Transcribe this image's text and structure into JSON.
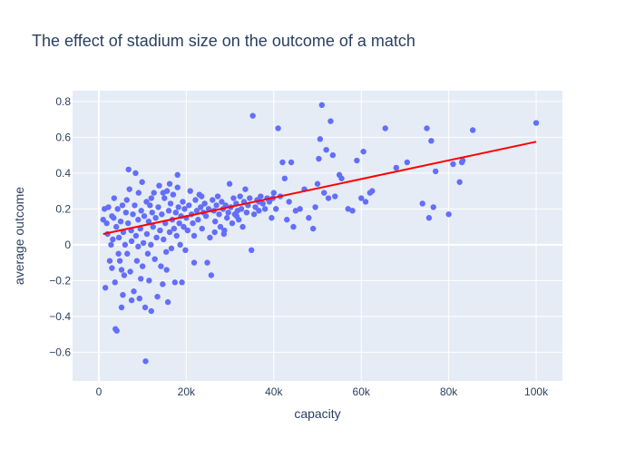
{
  "chart_data": {
    "type": "scatter",
    "title": "The effect of stadium size on the outcome of a match",
    "xlabel": "capacity",
    "ylabel": "average outcome",
    "xlim": [
      -6000,
      106000
    ],
    "ylim": [
      -0.76,
      0.86
    ],
    "grid": true,
    "colors": {
      "plot_bg": "#E5ECF6",
      "grid": "#ffffff",
      "points": "#636EFA",
      "trend": "#FF0000",
      "text": "#2a3f5f"
    },
    "x_ticks": [
      {
        "value": 0,
        "label": "0"
      },
      {
        "value": 20000,
        "label": "20k"
      },
      {
        "value": 40000,
        "label": "40k"
      },
      {
        "value": 60000,
        "label": "60k"
      },
      {
        "value": 80000,
        "label": "80k"
      },
      {
        "value": 100000,
        "label": "100k"
      }
    ],
    "y_ticks": [
      {
        "value": -0.6,
        "label": "−0.6"
      },
      {
        "value": -0.4,
        "label": "−0.4"
      },
      {
        "value": -0.2,
        "label": "−0.2"
      },
      {
        "value": 0,
        "label": "0"
      },
      {
        "value": 0.2,
        "label": "0.2"
      },
      {
        "value": 0.4,
        "label": "0.4"
      },
      {
        "value": 0.6,
        "label": "0.6"
      },
      {
        "value": 0.8,
        "label": "0.8"
      }
    ],
    "trendline": {
      "x": [
        1000,
        100000
      ],
      "y": [
        0.06,
        0.575
      ]
    },
    "series": [
      {
        "points": [
          [
            1000,
            0.14
          ],
          [
            1300,
            0.2
          ],
          [
            1500,
            -0.24
          ],
          [
            1800,
            0.12
          ],
          [
            2000,
            0.06
          ],
          [
            2200,
            0.21
          ],
          [
            2500,
            -0.09
          ],
          [
            2800,
            0.0
          ],
          [
            3000,
            -0.13
          ],
          [
            3200,
            0.03
          ],
          [
            3400,
            0.15
          ],
          [
            3500,
            0.26
          ],
          [
            3700,
            -0.21
          ],
          [
            3800,
            -0.47
          ],
          [
            4000,
            0.1
          ],
          [
            4100,
            -0.48
          ],
          [
            4300,
            0.2
          ],
          [
            4500,
            -0.05
          ],
          [
            4600,
            0.04
          ],
          [
            4800,
            -0.09
          ],
          [
            5000,
            0.13
          ],
          [
            5200,
            -0.35
          ],
          [
            5400,
            0.22
          ],
          [
            5500,
            -0.28
          ],
          [
            5600,
            0.07
          ],
          [
            5800,
            -0.17
          ],
          [
            6000,
            0.0
          ],
          [
            6200,
            0.18
          ],
          [
            6400,
            0.25
          ],
          [
            6500,
            -0.05
          ],
          [
            6700,
            0.12
          ],
          [
            6800,
            0.42
          ],
          [
            7000,
            0.31
          ],
          [
            7200,
            -0.15
          ],
          [
            7400,
            0.08
          ],
          [
            7500,
            0.02
          ],
          [
            7800,
            0.17
          ],
          [
            8000,
            -0.26
          ],
          [
            8200,
            0.22
          ],
          [
            8400,
            0.4
          ],
          [
            8500,
            0.05
          ],
          [
            8700,
            -0.09
          ],
          [
            9000,
            0.14
          ],
          [
            9100,
            0.29
          ],
          [
            9300,
            -0.3
          ],
          [
            9500,
            0.09
          ],
          [
            9700,
            0.19
          ],
          [
            9900,
            0.35
          ],
          [
            10000,
            -0.12
          ],
          [
            10200,
            0.01
          ],
          [
            10400,
            0.16
          ],
          [
            10600,
            -0.35
          ],
          [
            10700,
            -0.65
          ],
          [
            10900,
            0.24
          ],
          [
            11000,
            0.06
          ],
          [
            11200,
            -0.05
          ],
          [
            11400,
            0.13
          ],
          [
            11500,
            -0.2
          ],
          [
            11700,
            0.22
          ],
          [
            11900,
            0.0
          ],
          [
            12000,
            -0.37
          ],
          [
            12200,
            0.18
          ],
          [
            12400,
            0.1
          ],
          [
            12600,
            0.29
          ],
          [
            12800,
            -0.08
          ],
          [
            13000,
            0.15
          ],
          [
            13200,
            0.04
          ],
          [
            13400,
            -0.29
          ],
          [
            13600,
            0.21
          ],
          [
            13800,
            0.33
          ],
          [
            14000,
            0.08
          ],
          [
            14200,
            -0.12
          ],
          [
            14400,
            0.17
          ],
          [
            14600,
            -0.22
          ],
          [
            14800,
            0.03
          ],
          [
            15000,
            0.26
          ],
          [
            15200,
            0.12
          ],
          [
            15400,
            -0.04
          ],
          [
            15600,
            0.3
          ],
          [
            15800,
            -0.32
          ],
          [
            16000,
            0.19
          ],
          [
            16200,
            0.07
          ],
          [
            16400,
            0.23
          ],
          [
            16600,
            -0.02
          ],
          [
            16800,
            0.14
          ],
          [
            17000,
            0.28
          ],
          [
            17200,
            0.09
          ],
          [
            17400,
            -0.21
          ],
          [
            17600,
            0.18
          ],
          [
            17800,
            0.05
          ],
          [
            18000,
            0.39
          ],
          [
            18200,
            0.21
          ],
          [
            18400,
            0.12
          ],
          [
            18600,
            0.0
          ],
          [
            18800,
            0.16
          ],
          [
            19000,
            -0.21
          ],
          [
            19200,
            0.24
          ],
          [
            19400,
            0.1
          ],
          [
            19600,
            0.2
          ],
          [
            19800,
            -0.03
          ],
          [
            20000,
            0.15
          ],
          [
            20300,
            0.08
          ],
          [
            20600,
            0.22
          ],
          [
            20900,
            0.3
          ],
          [
            21200,
            0.17
          ],
          [
            21500,
            0.12
          ],
          [
            21800,
            0.05
          ],
          [
            22100,
            0.25
          ],
          [
            22400,
            0.19
          ],
          [
            22700,
            0.14
          ],
          [
            23000,
            0.28
          ],
          [
            23300,
            0.21
          ],
          [
            23600,
            0.09
          ],
          [
            23900,
            0.18
          ],
          [
            24200,
            0.23
          ],
          [
            24500,
            0.16
          ],
          [
            24800,
            -0.1
          ],
          [
            25100,
            0.2
          ],
          [
            25400,
            0.04
          ],
          [
            25700,
            -0.17
          ],
          [
            26000,
            0.25
          ],
          [
            26300,
            0.19
          ],
          [
            26600,
            0.13
          ],
          [
            26900,
            0.22
          ],
          [
            27200,
            0.27
          ],
          [
            27500,
            0.17
          ],
          [
            27800,
            0.1
          ],
          [
            28100,
            0.24
          ],
          [
            28400,
            0.2
          ],
          [
            28700,
            0.08
          ],
          [
            29000,
            0.22
          ],
          [
            29300,
            0.15
          ],
          [
            29600,
            0.18
          ],
          [
            29900,
            0.34
          ],
          [
            30200,
            0.21
          ],
          [
            30500,
            0.12
          ],
          [
            30800,
            0.26
          ],
          [
            31100,
            0.17
          ],
          [
            31400,
            0.23
          ],
          [
            31700,
            0.19
          ],
          [
            32000,
            0.14
          ],
          [
            32300,
            0.27
          ],
          [
            32600,
            0.2
          ],
          [
            32900,
            0.1
          ],
          [
            33200,
            0.24
          ],
          [
            33500,
            0.31
          ],
          [
            33800,
            0.18
          ],
          [
            34100,
            0.22
          ],
          [
            34500,
            0.26
          ],
          [
            34900,
            -0.03
          ],
          [
            35200,
            0.72
          ],
          [
            35500,
            0.17
          ],
          [
            35800,
            0.21
          ],
          [
            36200,
            0.25
          ],
          [
            36600,
            0.19
          ],
          [
            37000,
            0.27
          ],
          [
            37500,
            0.23
          ],
          [
            38000,
            0.2
          ],
          [
            38500,
            0.26
          ],
          [
            39000,
            0.24
          ],
          [
            39500,
            0.15
          ],
          [
            40000,
            0.29
          ],
          [
            40500,
            0.2
          ],
          [
            41000,
            0.65
          ],
          [
            41500,
            0.27
          ],
          [
            42000,
            0.46
          ],
          [
            42500,
            0.37
          ],
          [
            43000,
            0.14
          ],
          [
            43500,
            0.24
          ],
          [
            44000,
            0.46
          ],
          [
            44500,
            0.1
          ],
          [
            45000,
            0.19
          ],
          [
            46000,
            0.2
          ],
          [
            47000,
            0.31
          ],
          [
            48000,
            0.15
          ],
          [
            49000,
            0.09
          ],
          [
            49500,
            0.21
          ],
          [
            50000,
            0.34
          ],
          [
            50300,
            0.48
          ],
          [
            50600,
            0.59
          ],
          [
            51000,
            0.78
          ],
          [
            51500,
            0.29
          ],
          [
            52000,
            0.53
          ],
          [
            52500,
            0.26
          ],
          [
            53000,
            0.69
          ],
          [
            53500,
            0.5
          ],
          [
            54000,
            0.27
          ],
          [
            55000,
            0.39
          ],
          [
            55500,
            0.37
          ],
          [
            57000,
            0.2
          ],
          [
            58000,
            0.19
          ],
          [
            59000,
            0.47
          ],
          [
            60000,
            0.26
          ],
          [
            60500,
            0.52
          ],
          [
            61000,
            0.24
          ],
          [
            62000,
            0.29
          ],
          [
            62500,
            0.3
          ],
          [
            65500,
            0.65
          ],
          [
            68000,
            0.43
          ],
          [
            70500,
            0.46
          ],
          [
            74000,
            0.23
          ],
          [
            75000,
            0.65
          ],
          [
            75500,
            0.15
          ],
          [
            76000,
            0.58
          ],
          [
            76500,
            0.21
          ],
          [
            77000,
            0.41
          ],
          [
            80000,
            0.17
          ],
          [
            81000,
            0.45
          ],
          [
            82500,
            0.35
          ],
          [
            83000,
            0.46
          ],
          [
            83200,
            0.47
          ],
          [
            85500,
            0.64
          ],
          [
            100000,
            0.68
          ],
          [
            7500,
            -0.31
          ],
          [
            3000,
            0.16
          ],
          [
            21800,
            -0.1
          ],
          [
            16200,
            0.34
          ],
          [
            12000,
            0.26
          ],
          [
            9000,
            -0.01
          ],
          [
            26500,
            0.07
          ],
          [
            14700,
            0.29
          ],
          [
            18000,
            0.32
          ],
          [
            23500,
            0.27
          ],
          [
            28600,
            0.06
          ],
          [
            31500,
            0.16
          ],
          [
            5200,
            -0.14
          ],
          [
            9600,
            -0.19
          ],
          [
            15500,
            -0.14
          ],
          [
            36600,
            0.24
          ],
          [
            39800,
            0.26
          ]
        ]
      }
    ]
  }
}
